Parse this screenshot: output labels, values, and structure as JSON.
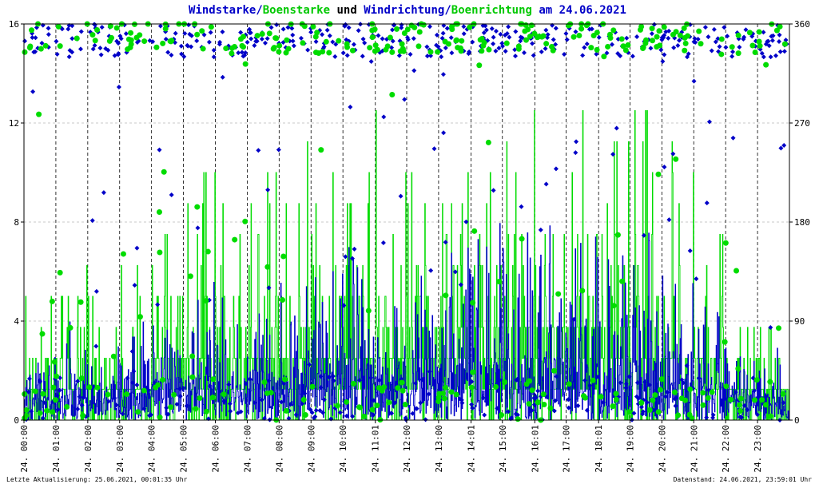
{
  "title_parts": [
    {
      "text": "Windstarke",
      "color": "#0000c8"
    },
    {
      "text": "/",
      "color": "#0000c8"
    },
    {
      "text": "Boenstarke",
      "color": "#00c800"
    },
    {
      "text": " und ",
      "color": "#000000"
    },
    {
      "text": "Windrichtung",
      "color": "#0000c8"
    },
    {
      "text": "/",
      "color": "#0000c8"
    },
    {
      "text": "Boenrichtung",
      "color": "#00c800"
    },
    {
      "text": " am 24.06.2021",
      "color": "#0000c8"
    }
  ],
  "footer": {
    "left": "Letzte Aktualisierung: 25.06.2021, 00:01:35 Uhr",
    "right": "Datenstand: 24.06.2021, 23:59:01 Uhr"
  },
  "chart_data": {
    "type": "line",
    "x_tick_labels": [
      "24. 00:00",
      "24. 01:00",
      "24. 02:00",
      "24. 03:00",
      "24. 04:00",
      "24. 05:00",
      "24. 06:00",
      "24. 07:00",
      "24. 08:00",
      "24. 09:00",
      "24. 10:00",
      "24. 11:01",
      "24. 12:00",
      "24. 13:00",
      "24. 14:01",
      "24. 15:00",
      "24. 16:01",
      "24. 17:00",
      "24. 18:01",
      "24. 19:00",
      "24. 20:00",
      "24. 21:00",
      "24. 22:00",
      "24. 23:00"
    ],
    "x_tick_hours": [
      0,
      1,
      2,
      3,
      4,
      5,
      6,
      7,
      8,
      9,
      10,
      11.0167,
      12,
      13,
      14.0167,
      15,
      16.0167,
      17,
      18.0167,
      19,
      20,
      21,
      22,
      23
    ],
    "xlim": [
      0,
      24
    ],
    "y_left": {
      "ylim": [
        0,
        16
      ],
      "ticks": [
        0,
        4,
        8,
        12,
        16
      ]
    },
    "y_right": {
      "ylim": [
        0,
        360
      ],
      "ticks": [
        0,
        90,
        180,
        270,
        360
      ]
    },
    "colors": {
      "wind": "#0000c8",
      "gust": "#00dc00",
      "grid": "#c8c8c8",
      "divider": "#000000"
    },
    "grid": true,
    "series": [
      {
        "kind": "line",
        "color_key": "gust",
        "hourly_typical_max": [
          5,
          7,
          6,
          7,
          9,
          10,
          9,
          10,
          11,
          10,
          11,
          13,
          10,
          10,
          12,
          13,
          13,
          13,
          12,
          13,
          11,
          8,
          5,
          4
        ],
        "hourly_typical_mean": [
          1.2,
          1.4,
          1.3,
          1.5,
          2.2,
          2.4,
          2.2,
          2.6,
          2.8,
          2.6,
          2.8,
          3.0,
          2.8,
          2.9,
          3.0,
          3.2,
          3.2,
          3.1,
          3.0,
          3.0,
          2.6,
          2.0,
          1.6,
          1.4
        ]
      },
      {
        "kind": "line",
        "color_key": "wind",
        "hourly_typical_max": [
          3,
          4,
          3,
          4,
          5,
          6,
          5,
          6,
          6,
          6,
          7,
          8,
          6,
          7,
          8,
          8,
          8,
          8,
          7,
          8,
          6,
          5,
          3,
          3
        ],
        "hourly_typical_mean": [
          0.8,
          0.9,
          0.8,
          1.0,
          1.4,
          1.6,
          1.4,
          1.7,
          1.8,
          1.7,
          1.9,
          2.0,
          1.8,
          1.9,
          2.0,
          2.1,
          2.1,
          2.0,
          1.9,
          2.0,
          1.6,
          1.3,
          1.0,
          0.9
        ]
      },
      {
        "kind": "scatter",
        "color_key": "wind",
        "axis": "right",
        "typical_direction_deg": 345
      },
      {
        "kind": "scatter",
        "color_key": "gust",
        "axis": "right",
        "typical_direction_deg": 348
      }
    ]
  }
}
